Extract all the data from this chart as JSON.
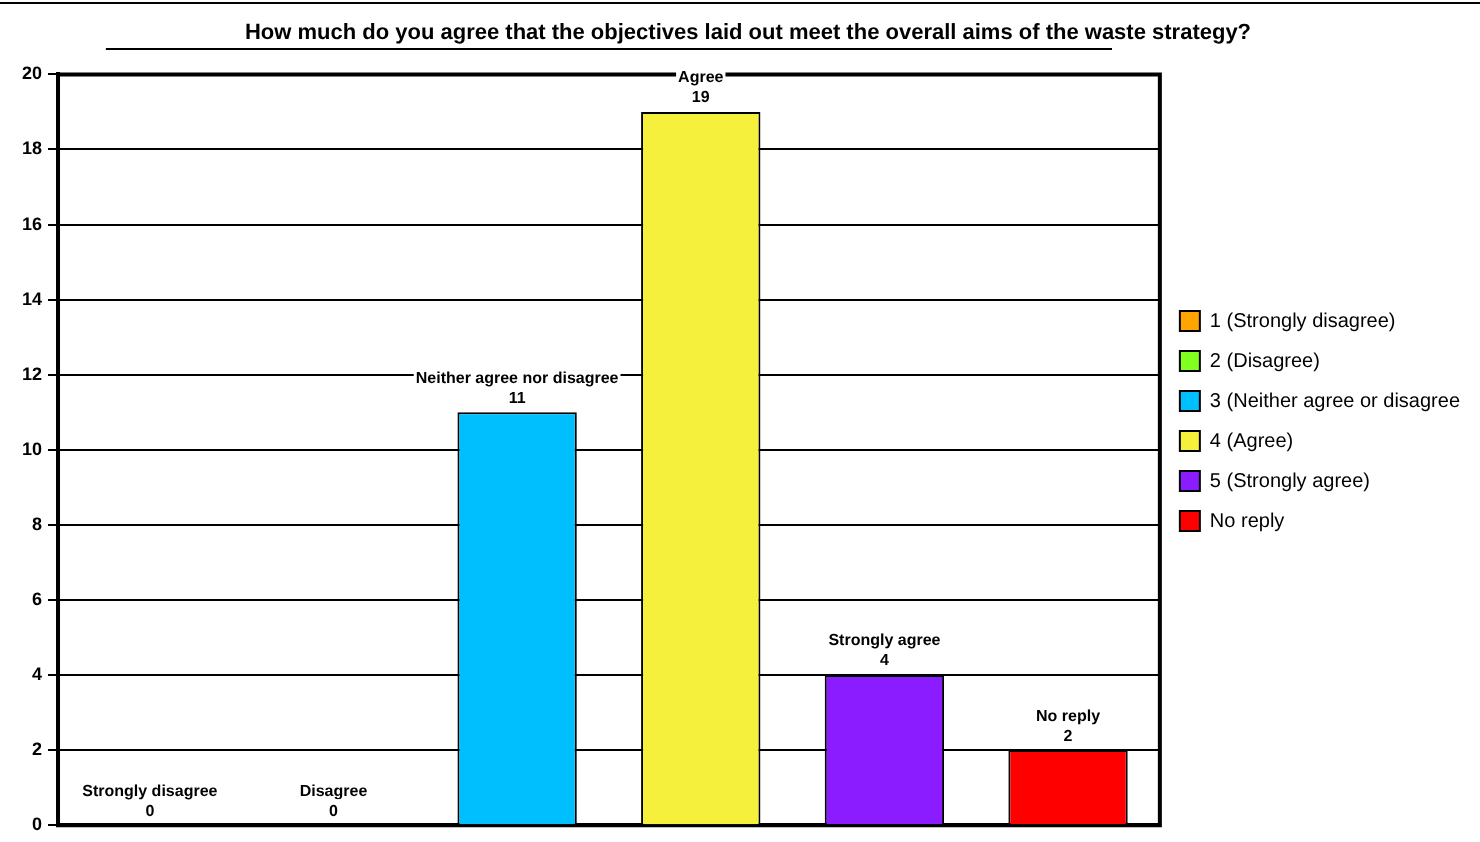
{
  "chart_data": {
    "type": "bar",
    "title": "How much do you agree that the objectives laid out meet the overall aims of the waste strategy?",
    "categories": [
      null,
      null,
      null,
      null,
      null,
      null
    ],
    "series": [
      {
        "name": "1 (Strongly disagree)",
        "color": "#ffa500",
        "values": [
          0,
          null,
          null,
          null,
          null,
          null
        ],
        "value_labels": [
          "Strongly disagree\n0",
          null,
          null,
          null,
          null,
          null
        ]
      },
      {
        "name": "2 (Disagree)",
        "color": "#80ff20",
        "values": [
          null,
          0,
          null,
          null,
          null,
          null
        ],
        "value_labels": [
          null,
          "Disagree\n0",
          null,
          null,
          null,
          null
        ]
      },
      {
        "name": "3 (Neither agree or disagree",
        "color": "#00bfff",
        "values": [
          null,
          null,
          11,
          null,
          null,
          null
        ],
        "value_labels": [
          null,
          null,
          "Neither agree nor disagree\n11",
          null,
          null,
          null
        ]
      },
      {
        "name": "4 (Agree)",
        "color": "#f5f03c",
        "values": [
          null,
          null,
          null,
          19,
          null,
          null
        ],
        "value_labels": [
          null,
          null,
          null,
          "Agree\n19",
          null,
          null
        ]
      },
      {
        "name": "5 (Strongly agree)",
        "color": "#8a1cff",
        "values": [
          null,
          null,
          null,
          null,
          4,
          null
        ],
        "value_labels": [
          null,
          null,
          null,
          null,
          "Strongly agree\n4",
          null
        ]
      },
      {
        "name": "No reply",
        "color": "#ff0000",
        "values": [
          null,
          null,
          null,
          null,
          null,
          2
        ],
        "value_labels": [
          null,
          null,
          null,
          null,
          null,
          "No reply\n2"
        ]
      }
    ],
    "ylim": [
      0,
      20
    ],
    "yticks": [
      0,
      2,
      4,
      6,
      8,
      10,
      12,
      14,
      16,
      18,
      20
    ],
    "grid": "y",
    "legend": "right",
    "tick_labels": "y"
  }
}
